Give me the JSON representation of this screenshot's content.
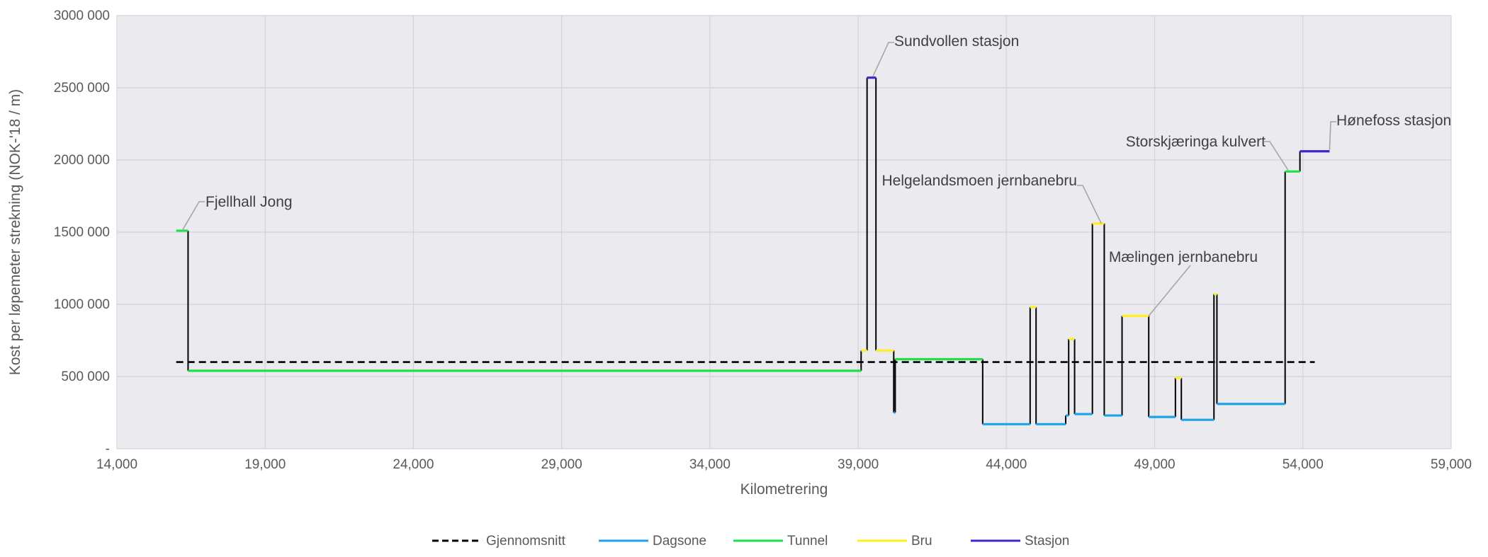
{
  "chart_data": {
    "type": "line",
    "xlabel": "Kilometrering",
    "ylabel": "Kost per løpemeter strekning (NOK-'18 / m)",
    "xlim": [
      14000,
      59000
    ],
    "ylim": [
      0,
      3000000
    ],
    "x_ticks": [
      {
        "value": 14000,
        "label": "14,000"
      },
      {
        "value": 19000,
        "label": "19,000"
      },
      {
        "value": 24000,
        "label": "24,000"
      },
      {
        "value": 29000,
        "label": "29,000"
      },
      {
        "value": 34000,
        "label": "34,000"
      },
      {
        "value": 39000,
        "label": "39,000"
      },
      {
        "value": 44000,
        "label": "44,000"
      },
      {
        "value": 49000,
        "label": "49,000"
      },
      {
        "value": 54000,
        "label": "54,000"
      },
      {
        "value": 59000,
        "label": "59,000"
      }
    ],
    "y_ticks": [
      {
        "value": 0,
        "label": "-"
      },
      {
        "value": 500000,
        "label": "500 000"
      },
      {
        "value": 1000000,
        "label": "1000 000"
      },
      {
        "value": 1500000,
        "label": "1500 000"
      },
      {
        "value": 2000000,
        "label": "2000 000"
      },
      {
        "value": 2500000,
        "label": "2500 000"
      },
      {
        "value": 3000000,
        "label": "3000 000"
      }
    ],
    "grid": true,
    "legend_position": "bottom",
    "average": {
      "name": "Gjennomsnitt",
      "value": 600000,
      "x": [
        16000,
        54400
      ],
      "color": "#000000"
    },
    "series": [
      {
        "name": "Dagsone",
        "color": "#1aa3e8"
      },
      {
        "name": "Tunnel",
        "color": "#1ee04a"
      },
      {
        "name": "Bru",
        "color": "#ffee22"
      },
      {
        "name": "Stasjon",
        "color": "#4422cc"
      }
    ],
    "segments": [
      {
        "type": "Tunnel",
        "x0": 16000,
        "x1": 16400,
        "y": 1510000
      },
      {
        "type": "Tunnel",
        "x0": 16400,
        "x1": 39100,
        "y": 540000
      },
      {
        "type": "Bru",
        "x0": 39100,
        "x1": 39300,
        "y": 680000
      },
      {
        "type": "Stasjon",
        "x0": 39300,
        "x1": 39600,
        "y": 2570000
      },
      {
        "type": "Bru",
        "x0": 39600,
        "x1": 40200,
        "y": 680000
      },
      {
        "type": "Dagsone",
        "x0": 40200,
        "x1": 40250,
        "y": 250000
      },
      {
        "type": "Tunnel",
        "x0": 40250,
        "x1": 43200,
        "y": 620000
      },
      {
        "type": "Dagsone",
        "x0": 43200,
        "x1": 44800,
        "y": 170000
      },
      {
        "type": "Bru",
        "x0": 44800,
        "x1": 45000,
        "y": 980000
      },
      {
        "type": "Dagsone",
        "x0": 45000,
        "x1": 46000,
        "y": 170000
      },
      {
        "type": "Dagsone",
        "x0": 46000,
        "x1": 46100,
        "y": 230000
      },
      {
        "type": "Bru",
        "x0": 46100,
        "x1": 46300,
        "y": 760000
      },
      {
        "type": "Dagsone",
        "x0": 46300,
        "x1": 46900,
        "y": 240000
      },
      {
        "type": "Bru",
        "x0": 46900,
        "x1": 47300,
        "y": 1560000
      },
      {
        "type": "Dagsone",
        "x0": 47300,
        "x1": 47900,
        "y": 230000
      },
      {
        "type": "Bru",
        "x0": 47900,
        "x1": 48800,
        "y": 920000
      },
      {
        "type": "Dagsone",
        "x0": 48800,
        "x1": 49700,
        "y": 220000
      },
      {
        "type": "Bru",
        "x0": 49700,
        "x1": 49900,
        "y": 490000
      },
      {
        "type": "Dagsone",
        "x0": 49900,
        "x1": 51000,
        "y": 200000
      },
      {
        "type": "Bru",
        "x0": 51000,
        "x1": 51100,
        "y": 1070000
      },
      {
        "type": "Dagsone",
        "x0": 51100,
        "x1": 53400,
        "y": 310000
      },
      {
        "type": "Tunnel",
        "x0": 53400,
        "x1": 53900,
        "y": 1920000
      },
      {
        "type": "Stasjon",
        "x0": 53900,
        "x1": 54900,
        "y": 2060000
      }
    ],
    "annotations": [
      {
        "text": "Fjellhall Jong",
        "x": 16200,
        "y": 1510000
      },
      {
        "text": "Sundvollen stasjon",
        "x": 39500,
        "y": 2580000
      },
      {
        "text": "Helgelandsmoen jernbanebru",
        "x": 47200,
        "y": 1560000
      },
      {
        "text": "Mælingen jernbanebru",
        "x": 48800,
        "y": 920000
      },
      {
        "text": "Storskjæringa kulvert",
        "x": 53500,
        "y": 1930000
      },
      {
        "text": "Hønefoss stasjon",
        "x": 54900,
        "y": 2070000
      }
    ]
  }
}
